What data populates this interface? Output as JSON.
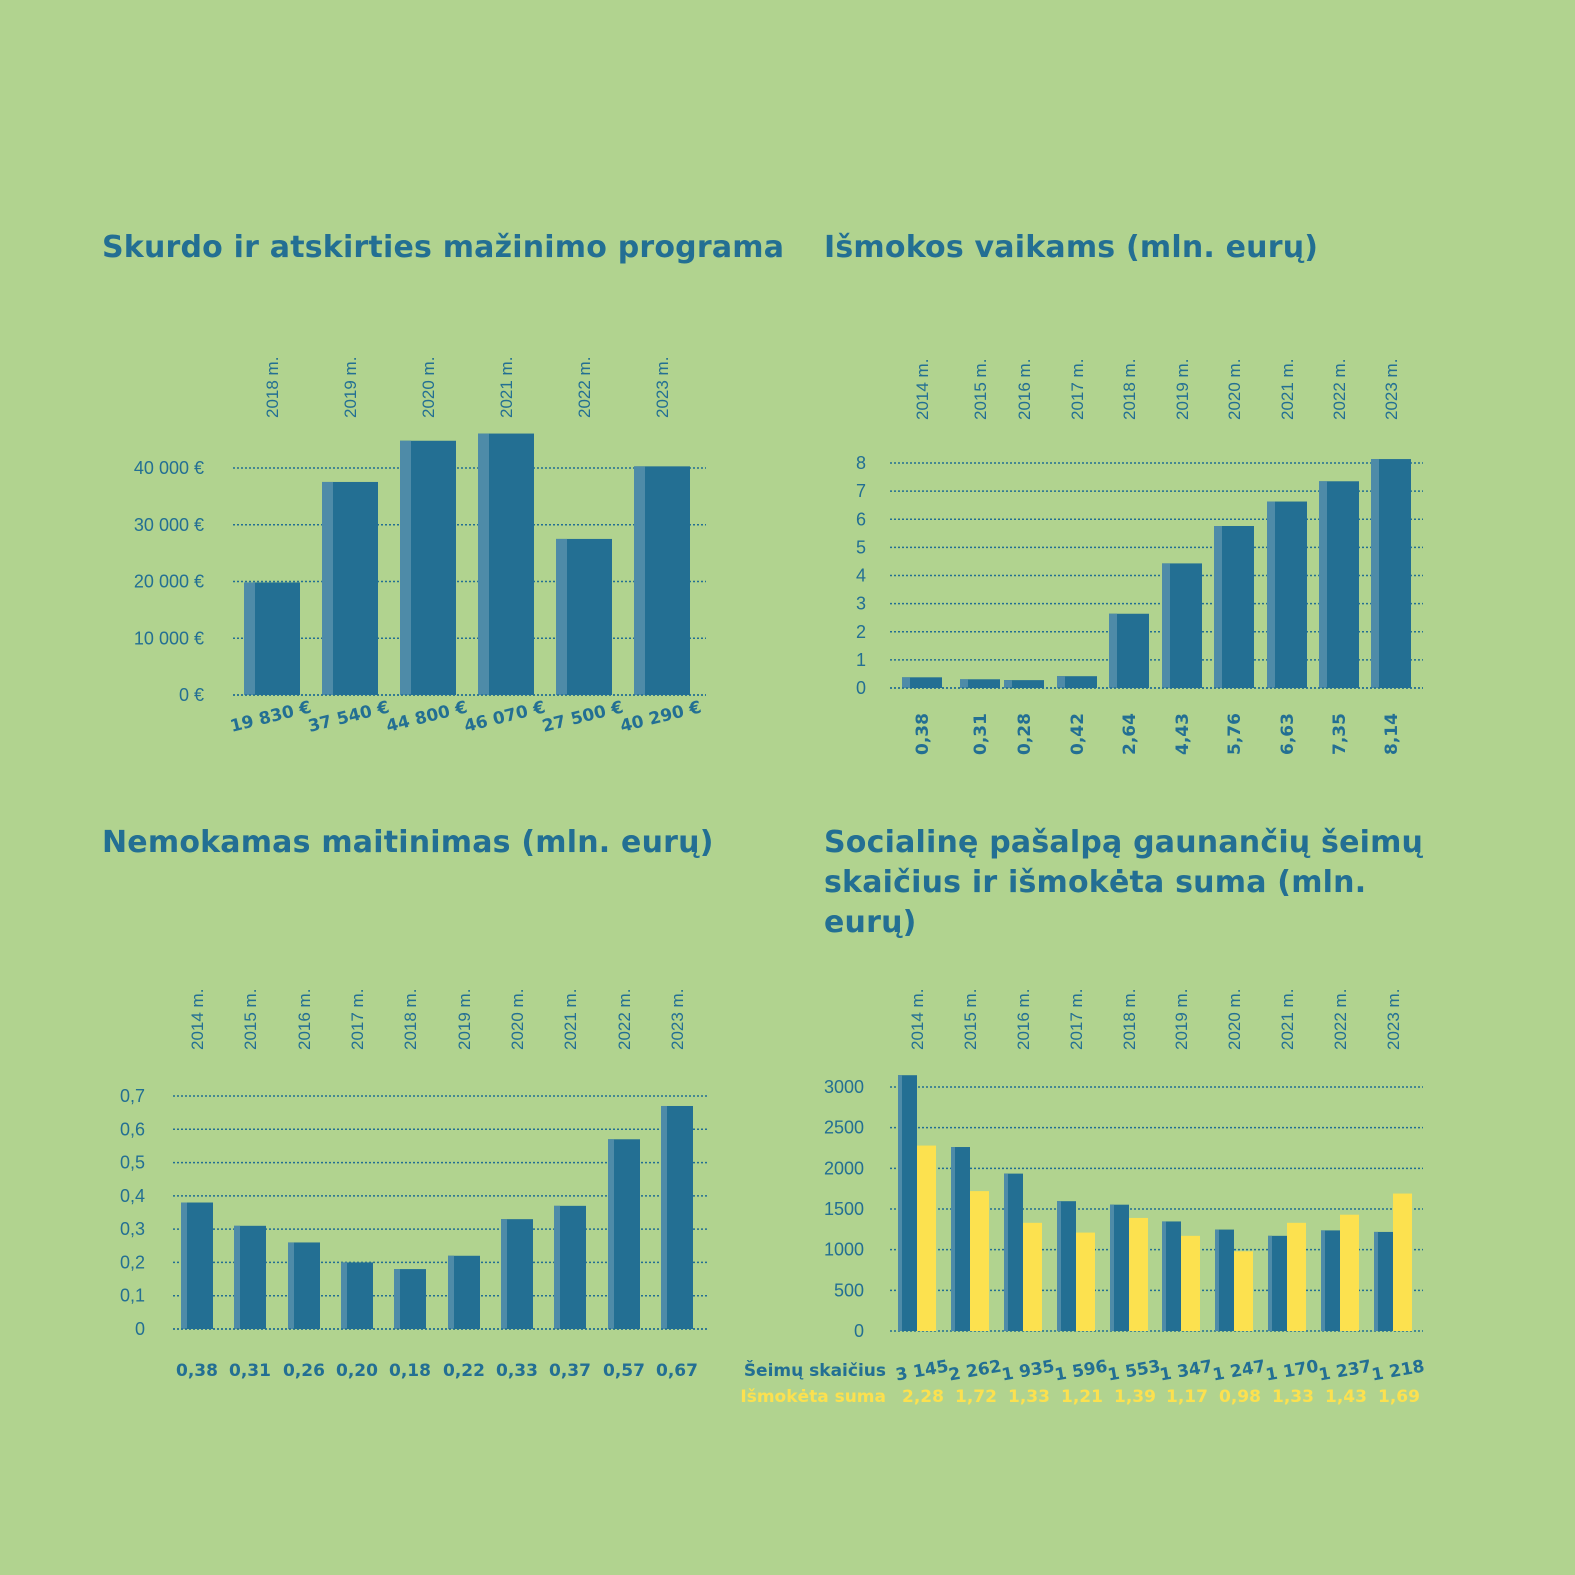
{
  "colors": {
    "background": "#b1d38f",
    "bar": "#236f93",
    "bar_highlight": "#4e8ba8",
    "yellow": "#fce14f",
    "text": "#236f93"
  },
  "chart_data": [
    {
      "type": "bar",
      "title": "Skurdo ir atskirties mažinimo programa",
      "categories": [
        "2018 m.",
        "2019 m.",
        "2020 m.",
        "2021 m.",
        "2022 m.",
        "2023 m."
      ],
      "values": [
        19830,
        37540,
        44800,
        46070,
        27500,
        40290
      ],
      "value_labels": [
        "19 830 €",
        "37 540 €",
        "44 800 €",
        "46 070 €",
        "27 500 €",
        "40 290 €"
      ],
      "yticks": [
        0,
        10000,
        20000,
        30000,
        40000
      ],
      "ytick_labels": [
        "0 €",
        "10 000 €",
        "20 000 €",
        "30 000 €",
        "40 000 €"
      ],
      "ylim": [
        0,
        40000
      ],
      "grid": true
    },
    {
      "type": "bar",
      "title": "Išmokos vaikams (mln. eurų)",
      "categories": [
        "2014 m.",
        "2015 m.",
        "2016 m.",
        "2017 m.",
        "2018 m.",
        "2019 m.",
        "2020 m.",
        "2021 m.",
        "2022 m.",
        "2023 m."
      ],
      "values": [
        0.38,
        0.31,
        0.28,
        0.42,
        2.64,
        4.43,
        5.76,
        6.63,
        7.35,
        8.14
      ],
      "value_labels": [
        "0,38",
        "0,31",
        "0,28",
        "0,42",
        "2,64",
        "4,43",
        "5,76",
        "6,63",
        "7,35",
        "8,14"
      ],
      "yticks": [
        0,
        1,
        2,
        3,
        4,
        5,
        6,
        7,
        8
      ],
      "ytick_labels": [
        "0",
        "1",
        "2",
        "3",
        "4",
        "5",
        "6",
        "7",
        "8"
      ],
      "ylim": [
        0,
        8
      ],
      "grid": true
    },
    {
      "type": "bar",
      "title": "Nemokamas maitinimas (mln. eurų)",
      "categories": [
        "2014 m.",
        "2015 m.",
        "2016 m.",
        "2017 m.",
        "2018 m.",
        "2019 m.",
        "2020 m.",
        "2021 m.",
        "2022 m.",
        "2023 m."
      ],
      "values": [
        0.38,
        0.31,
        0.26,
        0.2,
        0.18,
        0.22,
        0.33,
        0.37,
        0.57,
        0.67
      ],
      "value_labels": [
        "0,38",
        "0,31",
        "0,26",
        "0,20",
        "0,18",
        "0,22",
        "0,33",
        "0,37",
        "0,57",
        "0,67"
      ],
      "yticks": [
        0,
        0.1,
        0.2,
        0.3,
        0.4,
        0.5,
        0.6,
        0.7
      ],
      "ytick_labels": [
        "0",
        "0,1",
        "0,2",
        "0,3",
        "0,4",
        "0,5",
        "0,6",
        "0,7"
      ],
      "ylim": [
        0,
        0.7
      ],
      "grid": true
    },
    {
      "type": "bar",
      "title": "Socialinę pašalpą gaunančių šeimų skaičius ir išmokėta suma (mln. eurų)",
      "categories": [
        "2014 m.",
        "2015 m.",
        "2016 m.",
        "2017 m.",
        "2018 m.",
        "2019 m.",
        "2020 m.",
        "2021 m.",
        "2022 m.",
        "2023 m."
      ],
      "series": [
        {
          "name": "Šeimų skaičius",
          "values": [
            3145,
            2262,
            1935,
            1596,
            1553,
            1347,
            1247,
            1170,
            1237,
            1218
          ],
          "value_labels": [
            "3 145",
            "2 262",
            "1 935",
            "1 596",
            "1 553",
            "1 347",
            "1 247",
            "1 170",
            "1 237",
            "1 218"
          ]
        },
        {
          "name": "Išmokėta suma",
          "values": [
            2.28,
            1.72,
            1.33,
            1.21,
            1.39,
            1.17,
            0.98,
            1.33,
            1.43,
            1.69
          ],
          "value_labels": [
            "2,28",
            "1,72",
            "1,33",
            "1,21",
            "1,39",
            "1,17",
            "0,98",
            "1,33",
            "1,43",
            "1,69"
          ]
        }
      ],
      "yticks": [
        0,
        500,
        1000,
        1500,
        2000,
        2500,
        3000
      ],
      "ytick_labels": [
        "0",
        "500",
        "1000",
        "1500",
        "2000",
        "2500",
        "3000"
      ],
      "ylim": [
        0,
        3000
      ],
      "grid": true
    }
  ]
}
